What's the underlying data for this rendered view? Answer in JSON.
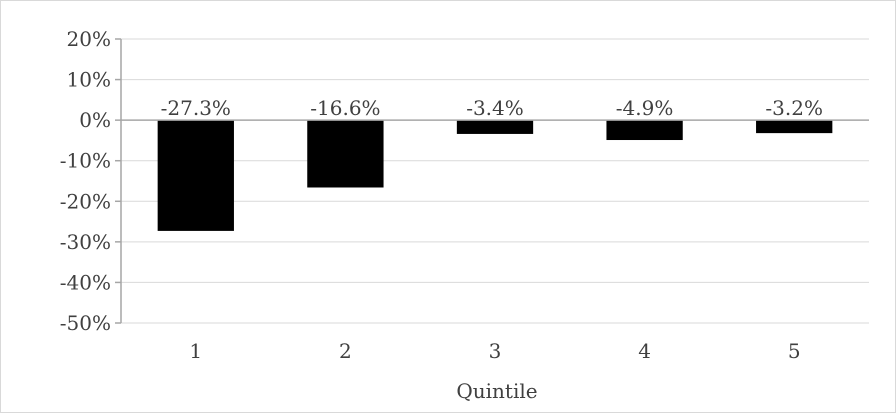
{
  "chart_data": {
    "type": "bar",
    "title": "",
    "xlabel": "Quintile",
    "ylabel": "",
    "categories": [
      "1",
      "2",
      "3",
      "4",
      "5"
    ],
    "values": [
      -27.3,
      -16.6,
      -3.4,
      -4.9,
      -3.2
    ],
    "data_labels": [
      "-27.3%",
      "-16.6%",
      "-3.4%",
      "-4.9%",
      "-3.2%"
    ],
    "ylim": [
      -50,
      20
    ],
    "yticks": [
      20,
      10,
      0,
      -10,
      -20,
      -30,
      -40,
      -50
    ],
    "ytick_labels": [
      "20%",
      "10%",
      "0%",
      "-10%",
      "-20%",
      "-30%",
      "-40%",
      "-50%"
    ],
    "grid": true,
    "legend": "none",
    "bar_color": "#000000",
    "gridline_color": "#d9d9d9",
    "axis_color": "#a6a6a6",
    "text_color": "#404040"
  }
}
